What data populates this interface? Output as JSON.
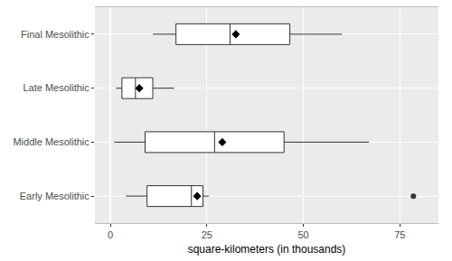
{
  "chart_data": {
    "type": "box",
    "orientation": "horizontal",
    "x_label": "square-kilometers (in thousands)",
    "categories": [
      "Early Mesolithic",
      "Middle Mesolithic",
      "Late Mesolithic",
      "Final Mesolithic"
    ],
    "lower_whisker": [
      4,
      1,
      1.5,
      11
    ],
    "q1": [
      9.5,
      9,
      3,
      17
    ],
    "median": [
      21,
      27,
      6.5,
      31
    ],
    "q3": [
      24,
      45,
      11,
      46.5
    ],
    "upper_whisker": [
      25.5,
      67,
      16.5,
      60
    ],
    "mean": [
      22.5,
      29,
      7.5,
      32.5
    ],
    "outliers": [
      [
        78.5
      ],
      [],
      [],
      []
    ],
    "xlim": [
      -4,
      85
    ],
    "xticks": [
      0,
      25,
      50,
      75
    ],
    "grid": true,
    "color": "#ffffff",
    "marker": "diamond"
  }
}
